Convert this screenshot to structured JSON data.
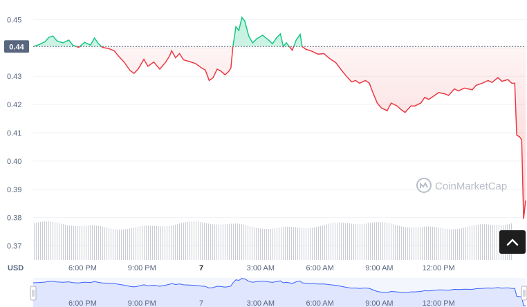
{
  "currency": "USD",
  "reference": {
    "label": "0.44",
    "value": 0.4405,
    "color": "#58667e"
  },
  "watermark": {
    "text": "CoinMarketCap",
    "icon": "coinmarketcap-logo-icon"
  },
  "scroll_button": {
    "icon": "chevron-up-icon"
  },
  "colors": {
    "up": "#16c784",
    "down": "#ea3943",
    "volume": "#c9ccd3",
    "navigator_line": "#3861fb",
    "navigator_fill": "#dfe6fd"
  },
  "chart_data": {
    "type": "line",
    "ylim": [
      0.365,
      0.455
    ],
    "yticks": [
      "0.45",
      "0.44",
      "0.43",
      "0.42",
      "0.41",
      "0.40",
      "0.39",
      "0.38",
      "0.37"
    ],
    "ytick_values": [
      0.45,
      0.44,
      0.43,
      0.42,
      0.41,
      0.4,
      0.39,
      0.38,
      0.37
    ],
    "xlim": [
      0,
      24.9
    ],
    "xticks": [
      "6:00 PM",
      "9:00 PM",
      "7",
      "3:00 AM",
      "6:00 AM",
      "9:00 AM",
      "12:00 PM"
    ],
    "xtick_positions": [
      2.5,
      5.5,
      8.5,
      11.5,
      14.5,
      17.5,
      20.5
    ],
    "xtick_bold": [
      false,
      false,
      true,
      false,
      false,
      false,
      false
    ],
    "series": [
      {
        "values": [
          [
            0.0,
            0.4405
          ],
          [
            0.3,
            0.4412
          ],
          [
            0.6,
            0.4422
          ],
          [
            0.8,
            0.4438
          ],
          [
            1.0,
            0.4442
          ],
          [
            1.2,
            0.4425
          ],
          [
            1.5,
            0.4418
          ],
          [
            1.8,
            0.4428
          ],
          [
            2.0,
            0.441
          ],
          [
            2.3,
            0.4402
          ],
          [
            2.6,
            0.442
          ],
          [
            2.9,
            0.441
          ],
          [
            3.1,
            0.4435
          ],
          [
            3.3,
            0.4415
          ],
          [
            3.5,
            0.4402
          ],
          [
            3.8,
            0.4398
          ],
          [
            4.1,
            0.439
          ],
          [
            4.3,
            0.4372
          ],
          [
            4.6,
            0.435
          ],
          [
            4.9,
            0.432
          ],
          [
            5.1,
            0.431
          ],
          [
            5.3,
            0.4325
          ],
          [
            5.6,
            0.436
          ],
          [
            5.8,
            0.4335
          ],
          [
            6.1,
            0.435
          ],
          [
            6.4,
            0.4325
          ],
          [
            6.7,
            0.435
          ],
          [
            6.9,
            0.4372
          ],
          [
            7.0,
            0.439
          ],
          [
            7.2,
            0.4365
          ],
          [
            7.4,
            0.438
          ],
          [
            7.6,
            0.4358
          ],
          [
            7.9,
            0.4352
          ],
          [
            8.2,
            0.4345
          ],
          [
            8.5,
            0.433
          ],
          [
            8.7,
            0.4322
          ],
          [
            8.9,
            0.4285
          ],
          [
            9.1,
            0.4295
          ],
          [
            9.3,
            0.4325
          ],
          [
            9.5,
            0.4318
          ],
          [
            9.7,
            0.4305
          ],
          [
            9.9,
            0.4318
          ],
          [
            10.0,
            0.433
          ],
          [
            10.1,
            0.4405
          ],
          [
            10.25,
            0.4475
          ],
          [
            10.4,
            0.4462
          ],
          [
            10.55,
            0.4508
          ],
          [
            10.7,
            0.4495
          ],
          [
            10.9,
            0.4442
          ],
          [
            11.1,
            0.4418
          ],
          [
            11.3,
            0.4432
          ],
          [
            11.6,
            0.4445
          ],
          [
            11.9,
            0.4428
          ],
          [
            12.1,
            0.4415
          ],
          [
            12.3,
            0.4435
          ],
          [
            12.5,
            0.445
          ],
          [
            12.65,
            0.4405
          ],
          [
            12.8,
            0.4418
          ],
          [
            13.1,
            0.4392
          ],
          [
            13.3,
            0.4428
          ],
          [
            13.5,
            0.4448
          ],
          [
            13.6,
            0.4405
          ],
          [
            13.8,
            0.4395
          ],
          [
            14.1,
            0.4388
          ],
          [
            14.4,
            0.4378
          ],
          [
            14.7,
            0.438
          ],
          [
            15.0,
            0.4362
          ],
          [
            15.3,
            0.4348
          ],
          [
            15.6,
            0.432
          ],
          [
            15.9,
            0.4295
          ],
          [
            16.1,
            0.428
          ],
          [
            16.3,
            0.4285
          ],
          [
            16.5,
            0.4275
          ],
          [
            16.8,
            0.4285
          ],
          [
            17.0,
            0.4275
          ],
          [
            17.2,
            0.4238
          ],
          [
            17.4,
            0.4205
          ],
          [
            17.6,
            0.4188
          ],
          [
            17.9,
            0.4178
          ],
          [
            18.1,
            0.4205
          ],
          [
            18.4,
            0.4195
          ],
          [
            18.6,
            0.4182
          ],
          [
            18.8,
            0.4172
          ],
          [
            19.1,
            0.4195
          ],
          [
            19.3,
            0.4195
          ],
          [
            19.6,
            0.4205
          ],
          [
            19.8,
            0.4225
          ],
          [
            20.0,
            0.4218
          ],
          [
            20.3,
            0.4232
          ],
          [
            20.5,
            0.4242
          ],
          [
            20.8,
            0.4238
          ],
          [
            21.0,
            0.4232
          ],
          [
            21.3,
            0.4255
          ],
          [
            21.5,
            0.4248
          ],
          [
            21.8,
            0.4258
          ],
          [
            22.0,
            0.4255
          ],
          [
            22.2,
            0.4252
          ],
          [
            22.4,
            0.4268
          ],
          [
            22.7,
            0.4275
          ],
          [
            23.0,
            0.4285
          ],
          [
            23.2,
            0.4278
          ],
          [
            23.5,
            0.4295
          ],
          [
            23.7,
            0.4282
          ],
          [
            24.0,
            0.4288
          ],
          [
            24.2,
            0.4275
          ],
          [
            24.35,
            0.4275
          ],
          [
            24.45,
            0.4092
          ],
          [
            24.6,
            0.4085
          ],
          [
            24.7,
            0.4075
          ],
          [
            24.8,
            0.3795
          ],
          [
            24.9,
            0.386
          ]
        ]
      }
    ],
    "navigator": {
      "xticks": [
        "6:00 PM",
        "9:00 PM",
        "7",
        "3:00 AM",
        "6:00 AM",
        "9:00 AM",
        "12:00 PM"
      ]
    }
  }
}
